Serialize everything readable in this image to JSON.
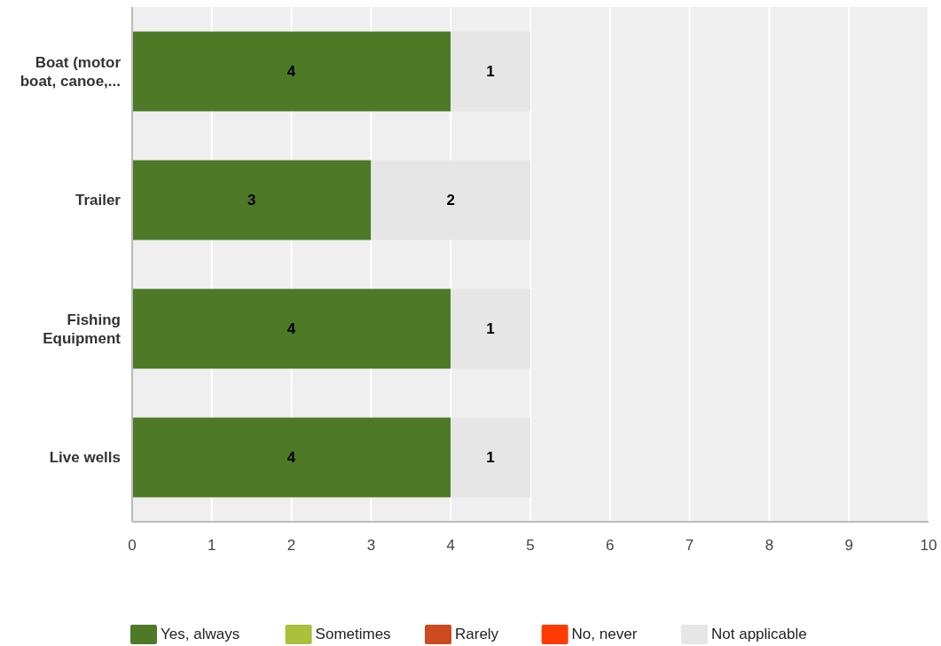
{
  "chart_data": {
    "type": "bar",
    "orientation": "horizontal",
    "stacked": true,
    "categories": [
      "Boat (motor boat, canoe,...",
      "Trailer",
      "Fishing Equipment",
      "Live wells"
    ],
    "series": [
      {
        "name": "Yes, always",
        "color": "#4e7a27",
        "values": [
          4,
          3,
          4,
          4
        ],
        "value_labels": [
          "4",
          "3",
          "4",
          "4"
        ]
      },
      {
        "name": "Sometimes",
        "color": "#aabf3b",
        "values": [
          0,
          0,
          0,
          0
        ],
        "value_labels": [
          null,
          null,
          null,
          null
        ]
      },
      {
        "name": "Rarely",
        "color": "#cc4a1e",
        "values": [
          0,
          0,
          0,
          0
        ],
        "value_labels": [
          null,
          null,
          null,
          null
        ]
      },
      {
        "name": "No, never",
        "color": "#ff3b00",
        "values": [
          0,
          0,
          0,
          0
        ],
        "value_labels": [
          null,
          null,
          null,
          null
        ]
      },
      {
        "name": "Not applicable",
        "color": "#e6e6e6",
        "values": [
          1,
          2,
          1,
          1
        ],
        "value_labels": [
          "1",
          "2",
          "1",
          "1"
        ]
      }
    ],
    "xlim": [
      0,
      10
    ],
    "xticks": [
      0,
      1,
      2,
      3,
      4,
      5,
      6,
      7,
      8,
      9,
      10
    ],
    "grid": "x",
    "legend": "bottom"
  }
}
